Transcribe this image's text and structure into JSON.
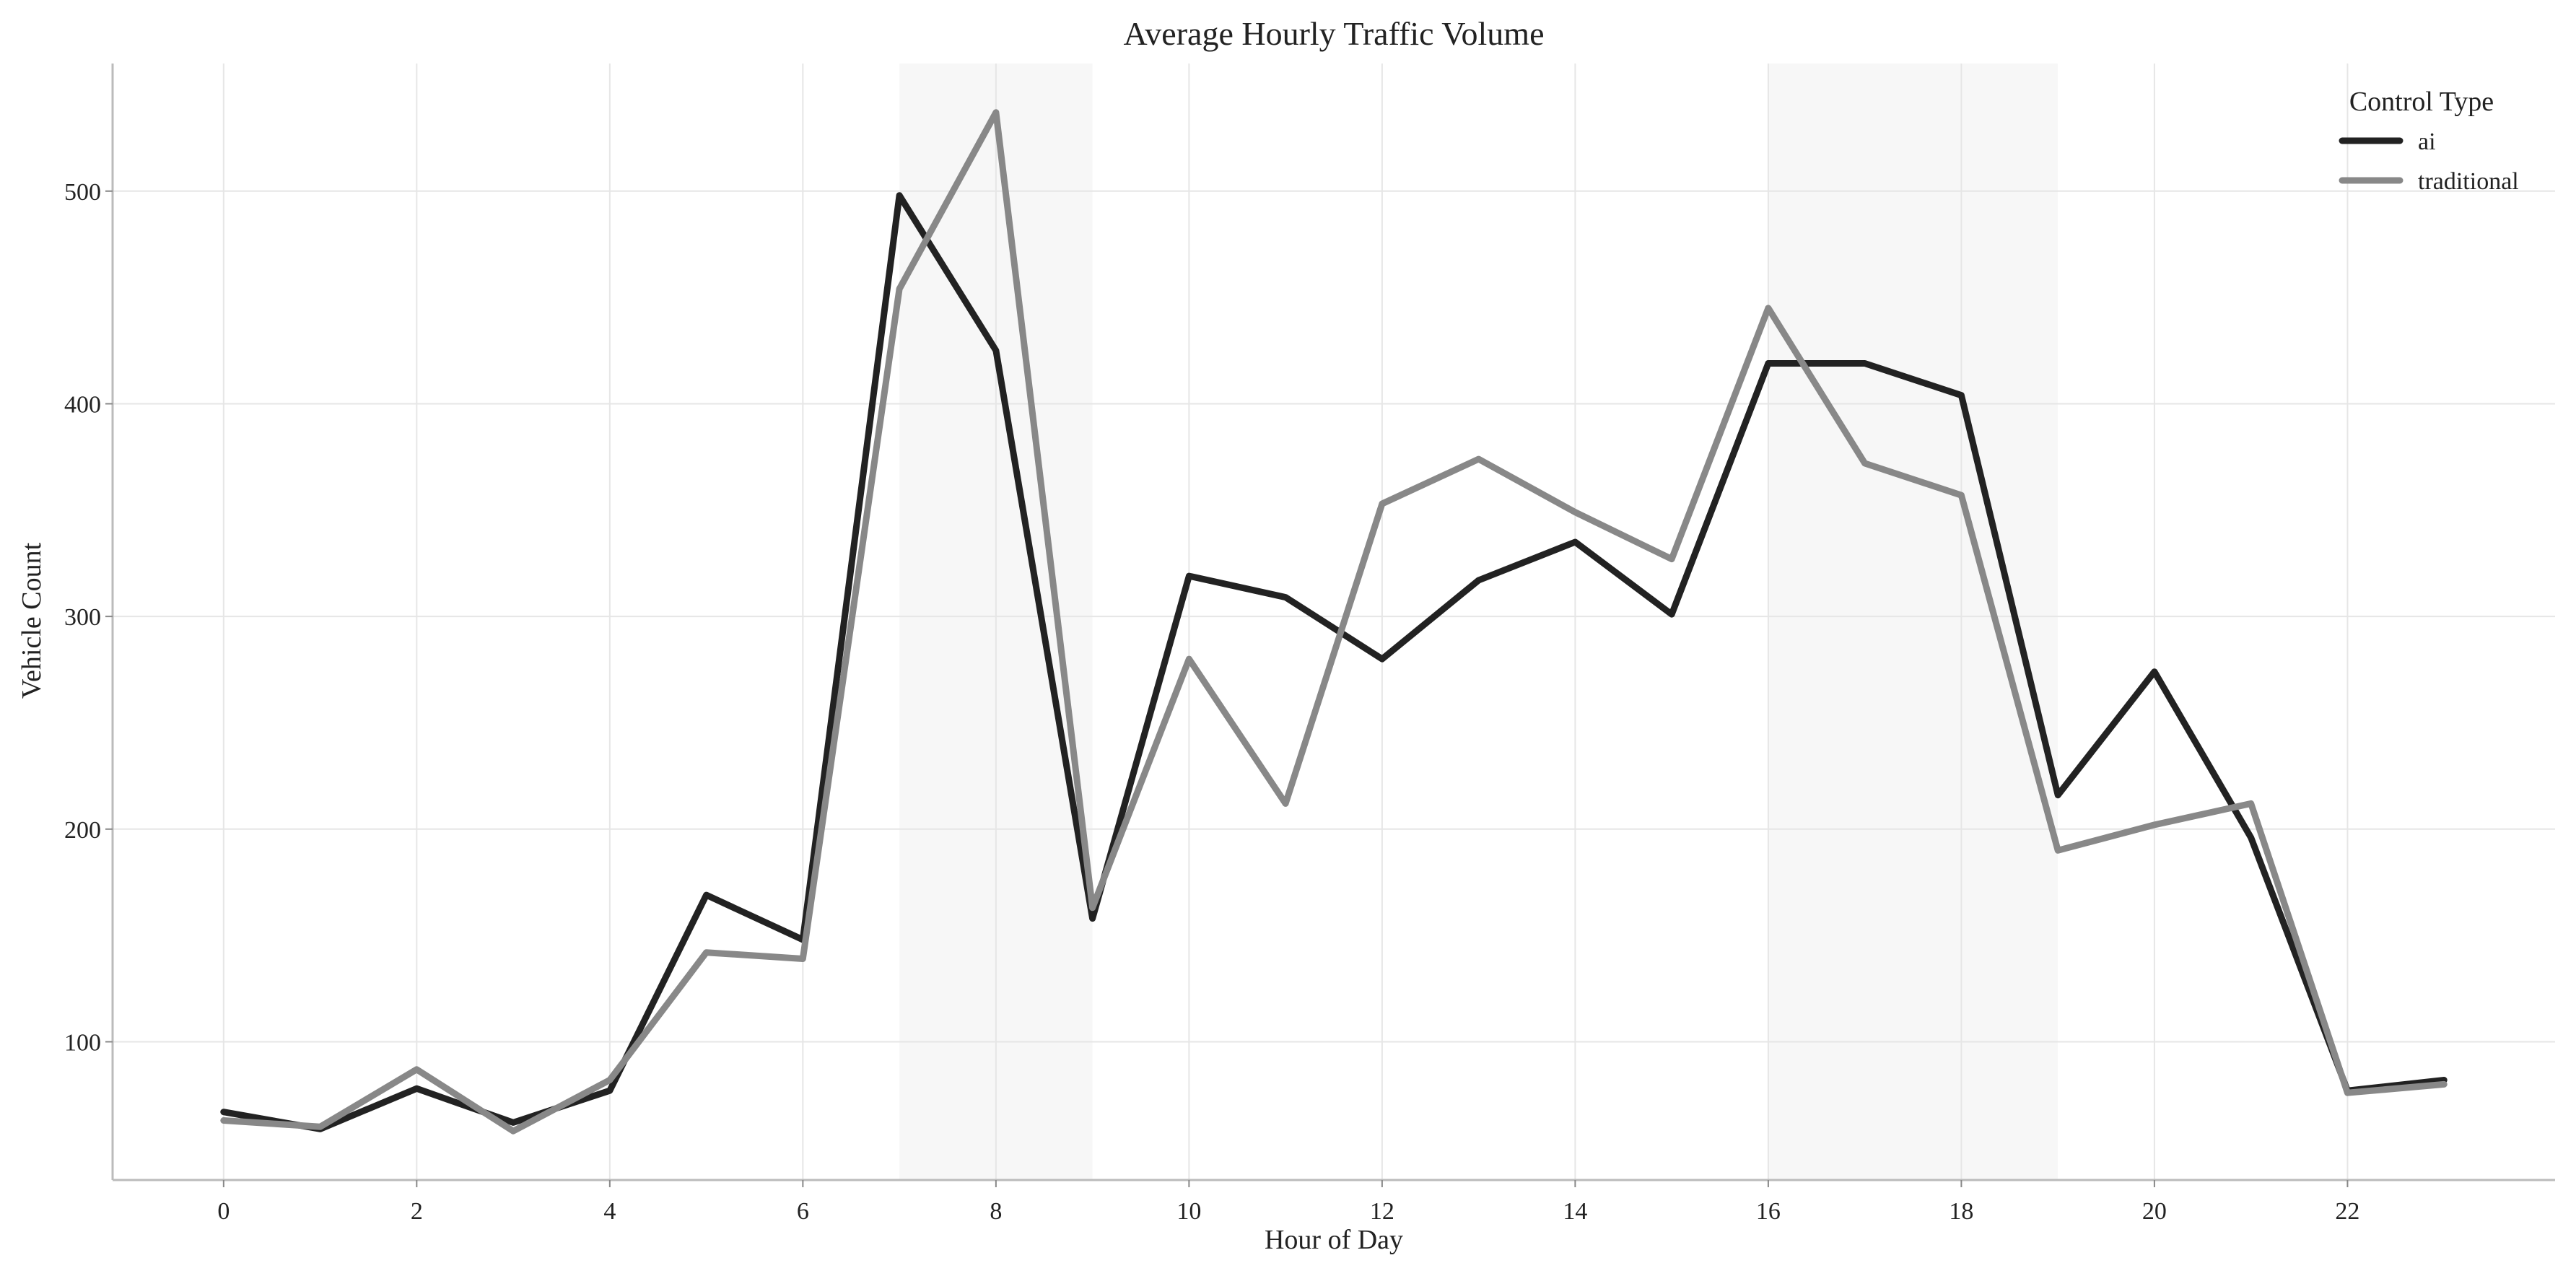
{
  "chart_data": {
    "type": "line",
    "title": "Average Hourly Traffic Volume",
    "xlabel": "Hour of Day",
    "ylabel": "Vehicle Count",
    "x": [
      0,
      1,
      2,
      3,
      4,
      5,
      6,
      7,
      8,
      9,
      10,
      11,
      12,
      13,
      14,
      15,
      16,
      17,
      18,
      19,
      20,
      21,
      22,
      23
    ],
    "xlim": [
      -1.15,
      24.15
    ],
    "ylim": [
      35,
      560
    ],
    "xticks": [
      0,
      2,
      4,
      6,
      8,
      10,
      12,
      14,
      16,
      18,
      20,
      22
    ],
    "yticks": [
      100,
      200,
      300,
      400,
      500
    ],
    "grid": true,
    "shaded_ranges": [
      [
        7,
        9
      ],
      [
        16,
        19
      ]
    ],
    "legend": {
      "title": "Control Type",
      "placement": "top-right"
    },
    "series": [
      {
        "name": "ai",
        "color": "#222222",
        "values": [
          67,
          59,
          78,
          62,
          77,
          169,
          148,
          498,
          425,
          158,
          319,
          309,
          280,
          317,
          335,
          301,
          419,
          419,
          404,
          216,
          274,
          196,
          77,
          82
        ]
      },
      {
        "name": "traditional",
        "color": "#888888",
        "values": [
          63,
          60,
          87,
          58,
          82,
          142,
          139,
          454,
          537,
          163,
          280,
          212,
          353,
          374,
          349,
          327,
          445,
          372,
          357,
          190,
          202,
          212,
          76,
          80
        ]
      }
    ]
  }
}
